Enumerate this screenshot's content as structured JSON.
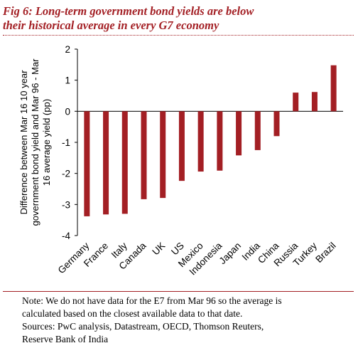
{
  "title_lines": [
    "Fig 6: Long-term government bond yields are below",
    "their historical average in every G7 economy"
  ],
  "note_lines": [
    "Note: We do not have data for the E7 from Mar 96 so the average is",
    "calculated based on the closest available data to that date.",
    "Sources: PwC analysis, Datastream, OECD, Thomson Reuters,",
    "Reserve Bank of India"
  ],
  "colors": {
    "bar": "#a31f24",
    "title": "#a31f24"
  },
  "chart_data": {
    "type": "bar",
    "categories": [
      "Germany",
      "France",
      "Italy",
      "Canada",
      "UK",
      "US",
      "Mexico",
      "Indonesia",
      "Japan",
      "India",
      "China",
      "Russia",
      "Turkey",
      "Brazil"
    ],
    "values": [
      -3.38,
      -3.32,
      -3.3,
      -2.83,
      -2.79,
      -2.24,
      -1.94,
      -1.91,
      -1.42,
      -1.25,
      -0.8,
      0.6,
      0.62,
      1.48
    ],
    "ylabel_lines": [
      "Difference between Mar 16 10 year",
      "government bond yield and Mar 96 - Mar",
      "16 average yield (pp)"
    ],
    "xlabel": "",
    "ylim": [
      -4,
      2
    ],
    "yticks": [
      "2",
      "1",
      "0",
      "-1",
      "-2",
      "-3",
      "-4"
    ],
    "ytick_values": [
      2,
      1,
      0,
      -1,
      -2,
      -3,
      -4
    ],
    "grid": false,
    "legend": "none"
  }
}
